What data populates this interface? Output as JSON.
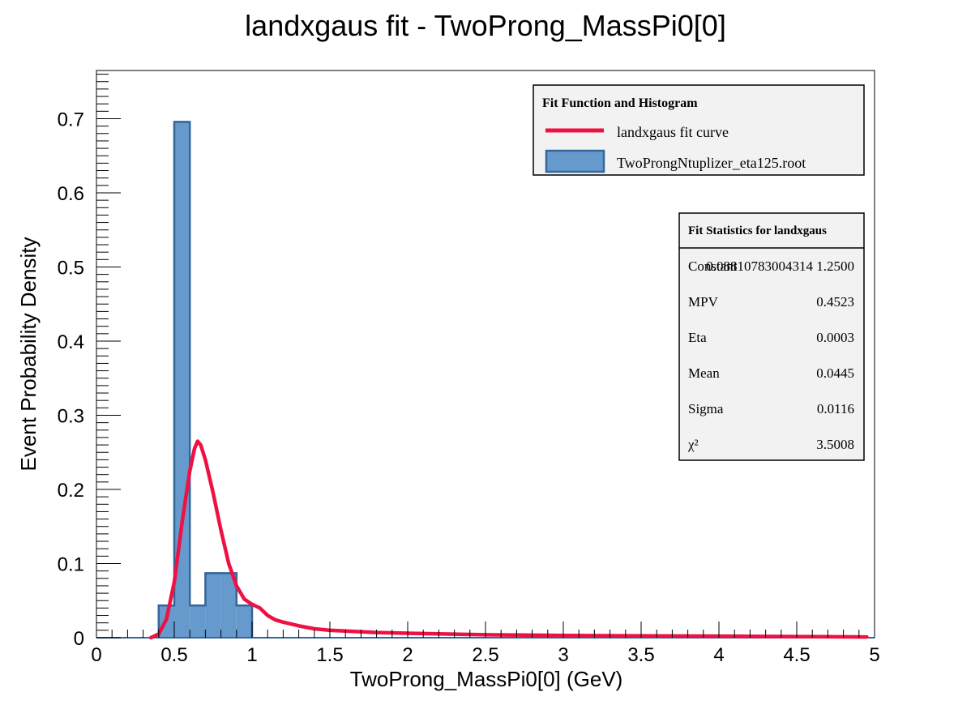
{
  "chart_data": {
    "type": "bar",
    "title": "landxgaus fit - TwoProng_MassPi0[0]",
    "xlabel": "TwoProng_MassPi0[0] (GeV)",
    "ylabel": "Event Probability Density",
    "xlim": [
      0,
      5
    ],
    "ylim": [
      0,
      0.765
    ],
    "grid": false,
    "x_ticks": [
      "0",
      "0.5",
      "1",
      "1.5",
      "2",
      "2.5",
      "3",
      "3.5",
      "4",
      "4.5",
      "5"
    ],
    "y_ticks": [
      "0",
      "0.1",
      "0.2",
      "0.3",
      "0.4",
      "0.5",
      "0.6",
      "0.7"
    ],
    "histogram": {
      "name": "TwoProngNtuplizer_eta125.root",
      "color": "#6699cc",
      "edge_color": "#336699",
      "bin_width": 0.1,
      "bins_low": [
        0.4,
        0.5,
        0.6,
        0.7,
        0.8,
        0.9
      ],
      "values": [
        0.0435,
        0.6957,
        0.0435,
        0.087,
        0.087,
        0.0435
      ]
    },
    "fit_curve": {
      "name": "landxgaus fit curve",
      "color": "#ee1144",
      "x": [
        0.35,
        0.4,
        0.45,
        0.5,
        0.55,
        0.6,
        0.63,
        0.65,
        0.67,
        0.7,
        0.75,
        0.8,
        0.85,
        0.9,
        0.95,
        1.0,
        1.05,
        1.1,
        1.15,
        1.2,
        1.3,
        1.4,
        1.5,
        1.6,
        1.8,
        2.0,
        2.5,
        3.0,
        3.5,
        4.0,
        4.5,
        4.95
      ],
      "y": [
        0.0,
        0.005,
        0.025,
        0.075,
        0.155,
        0.225,
        0.255,
        0.265,
        0.26,
        0.24,
        0.195,
        0.145,
        0.1,
        0.07,
        0.052,
        0.045,
        0.04,
        0.03,
        0.024,
        0.021,
        0.016,
        0.012,
        0.01,
        0.009,
        0.007,
        0.006,
        0.004,
        0.003,
        0.0025,
        0.002,
        0.0015,
        0.001
      ]
    },
    "legend": {
      "title": "Fit Function and Histogram",
      "placement": "top-right",
      "entries": [
        "landxgaus fit curve",
        "TwoProngNtuplizer_eta125.root"
      ]
    },
    "stats_box": {
      "title": "Fit Statistics for landxgaus",
      "placement": "right",
      "rows": [
        {
          "label": "Constant",
          "value": "0.08810783004314 1.2500"
        },
        {
          "label": "MPV",
          "value": "0.4523"
        },
        {
          "label": "Eta",
          "value": "0.0003"
        },
        {
          "label": "Mean",
          "value": "0.0445"
        },
        {
          "label": "Sigma",
          "value": "0.0116"
        },
        {
          "label": "χ²",
          "value": "3.5008"
        }
      ]
    }
  }
}
